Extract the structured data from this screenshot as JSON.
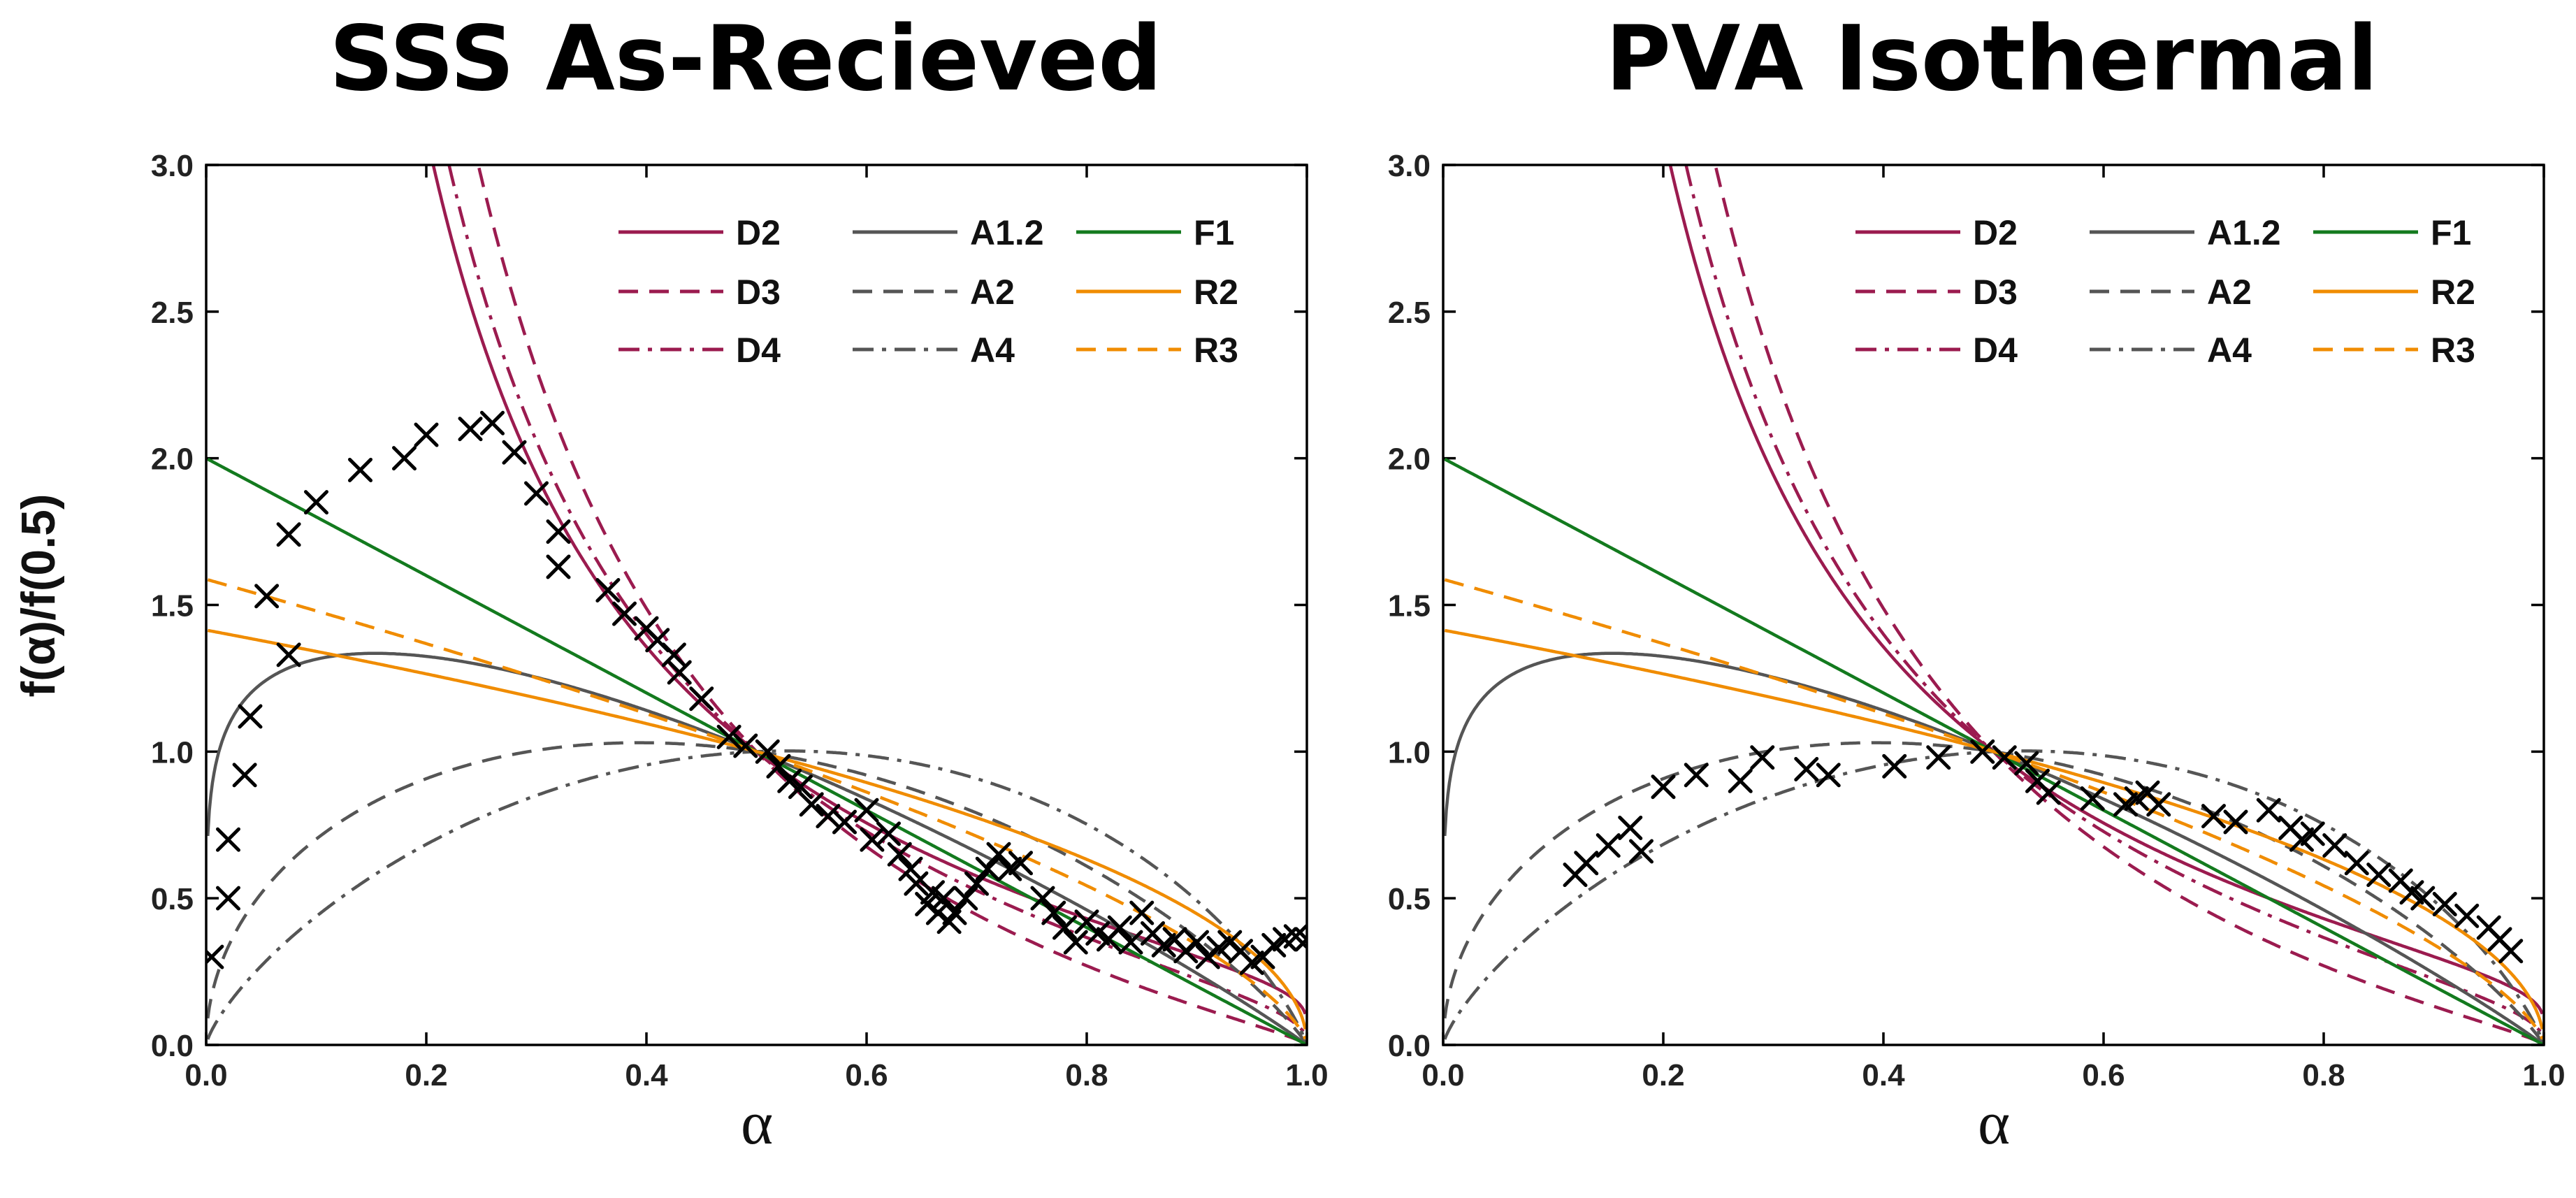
{
  "chart_data": [
    {
      "type": "line",
      "title": "SSS As-Recieved",
      "xlabel": "α",
      "ylabel": "f(α)/f(0.5)",
      "xlim": [
        0,
        1
      ],
      "ylim": [
        0,
        3
      ],
      "xticks": [
        "0.0",
        "0.2",
        "0.4",
        "0.6",
        "0.8",
        "1.0"
      ],
      "yticks": [
        "0.0",
        "0.5",
        "1.0",
        "1.5",
        "2.0",
        "2.5",
        "3.0"
      ],
      "grid": false,
      "legend_position": "top-right",
      "series": [
        {
          "name": "D2",
          "model": "D2",
          "color": "#9b1b4f",
          "dash": "solid"
        },
        {
          "name": "D3",
          "model": "D3",
          "color": "#9b1b4f",
          "dash": "dashed"
        },
        {
          "name": "D4",
          "model": "D4",
          "color": "#9b1b4f",
          "dash": "dashdot"
        },
        {
          "name": "A1.2",
          "model": "A1.2",
          "color": "#555555",
          "dash": "solid"
        },
        {
          "name": "A2",
          "model": "A2",
          "color": "#555555",
          "dash": "dashed"
        },
        {
          "name": "A4",
          "model": "A4",
          "color": "#555555",
          "dash": "dashdot"
        },
        {
          "name": "F1",
          "model": "F1",
          "color": "#137a1e",
          "dash": "solid"
        },
        {
          "name": "R2",
          "model": "R2",
          "color": "#f08c00",
          "dash": "solid"
        },
        {
          "name": "R3",
          "model": "R3",
          "color": "#f08c00",
          "dash": "dashed"
        }
      ],
      "experimental": {
        "marker": "x",
        "color": "#000000",
        "x": [
          0.005,
          0.02,
          0.02,
          0.035,
          0.04,
          0.055,
          0.075,
          0.075,
          0.1,
          0.14,
          0.18,
          0.2,
          0.24,
          0.26,
          0.28,
          0.3,
          0.32,
          0.32,
          0.365,
          0.38,
          0.4,
          0.41,
          0.425,
          0.43,
          0.45,
          0.475,
          0.49,
          0.51,
          0.52,
          0.53,
          0.54,
          0.55,
          0.565,
          0.58,
          0.6,
          0.605,
          0.62,
          0.63,
          0.64,
          0.645,
          0.655,
          0.66,
          0.665,
          0.67,
          0.675,
          0.68,
          0.69,
          0.7,
          0.71,
          0.72,
          0.73,
          0.74,
          0.76,
          0.77,
          0.78,
          0.79,
          0.8,
          0.81,
          0.82,
          0.83,
          0.84,
          0.85,
          0.86,
          0.87,
          0.88,
          0.89,
          0.9,
          0.91,
          0.92,
          0.93,
          0.94,
          0.95,
          0.96,
          0.97,
          0.98,
          0.99,
          1.0
        ],
        "y": [
          0.3,
          0.5,
          0.7,
          0.92,
          1.12,
          1.53,
          1.33,
          1.74,
          1.85,
          1.96,
          2.0,
          2.08,
          2.1,
          2.12,
          2.02,
          1.88,
          1.75,
          1.63,
          1.55,
          1.47,
          1.42,
          1.38,
          1.33,
          1.27,
          1.18,
          1.05,
          1.02,
          1.0,
          0.95,
          0.9,
          0.88,
          0.82,
          0.78,
          0.76,
          0.8,
          0.7,
          0.72,
          0.65,
          0.6,
          0.55,
          0.48,
          0.52,
          0.45,
          0.5,
          0.42,
          0.45,
          0.5,
          0.55,
          0.6,
          0.65,
          0.6,
          0.62,
          0.5,
          0.45,
          0.4,
          0.35,
          0.42,
          0.38,
          0.36,
          0.4,
          0.35,
          0.45,
          0.38,
          0.34,
          0.36,
          0.32,
          0.35,
          0.3,
          0.33,
          0.35,
          0.32,
          0.28,
          0.3,
          0.34,
          0.36,
          0.37,
          0.36
        ]
      }
    },
    {
      "type": "line",
      "title": "PVA Isothermal",
      "xlabel": "α",
      "ylabel": "",
      "xlim": [
        0,
        1
      ],
      "ylim": [
        0,
        3
      ],
      "xticks": [
        "0.0",
        "0.2",
        "0.4",
        "0.6",
        "0.8",
        "1.0"
      ],
      "yticks": [
        "0.0",
        "0.5",
        "1.0",
        "1.5",
        "2.0",
        "2.5",
        "3.0"
      ],
      "grid": false,
      "legend_position": "top-right",
      "series": [
        {
          "name": "D2",
          "model": "D2",
          "color": "#9b1b4f",
          "dash": "solid"
        },
        {
          "name": "D3",
          "model": "D3",
          "color": "#9b1b4f",
          "dash": "dashed"
        },
        {
          "name": "D4",
          "model": "D4",
          "color": "#9b1b4f",
          "dash": "dashdot"
        },
        {
          "name": "A1.2",
          "model": "A1.2",
          "color": "#555555",
          "dash": "solid"
        },
        {
          "name": "A2",
          "model": "A2",
          "color": "#555555",
          "dash": "dashed"
        },
        {
          "name": "A4",
          "model": "A4",
          "color": "#555555",
          "dash": "dashdot"
        },
        {
          "name": "F1",
          "model": "F1",
          "color": "#137a1e",
          "dash": "solid"
        },
        {
          "name": "R2",
          "model": "R2",
          "color": "#f08c00",
          "dash": "solid"
        },
        {
          "name": "R3",
          "model": "R3",
          "color": "#f08c00",
          "dash": "dashed"
        }
      ],
      "experimental": {
        "marker": "x",
        "color": "#000000",
        "x": [
          0.12,
          0.13,
          0.15,
          0.17,
          0.18,
          0.2,
          0.23,
          0.27,
          0.29,
          0.33,
          0.35,
          0.41,
          0.45,
          0.49,
          0.51,
          0.53,
          0.54,
          0.55,
          0.59,
          0.62,
          0.63,
          0.64,
          0.65,
          0.7,
          0.72,
          0.75,
          0.77,
          0.78,
          0.79,
          0.81,
          0.83,
          0.85,
          0.87,
          0.88,
          0.89,
          0.91,
          0.93,
          0.95,
          0.96,
          0.97
        ],
        "y": [
          0.58,
          0.62,
          0.68,
          0.74,
          0.66,
          0.88,
          0.92,
          0.9,
          0.98,
          0.94,
          0.92,
          0.95,
          0.98,
          1.0,
          0.98,
          0.96,
          0.9,
          0.86,
          0.84,
          0.82,
          0.84,
          0.86,
          0.82,
          0.78,
          0.76,
          0.8,
          0.74,
          0.7,
          0.72,
          0.68,
          0.62,
          0.58,
          0.56,
          0.52,
          0.5,
          0.48,
          0.44,
          0.4,
          0.36,
          0.32
        ]
      }
    }
  ]
}
